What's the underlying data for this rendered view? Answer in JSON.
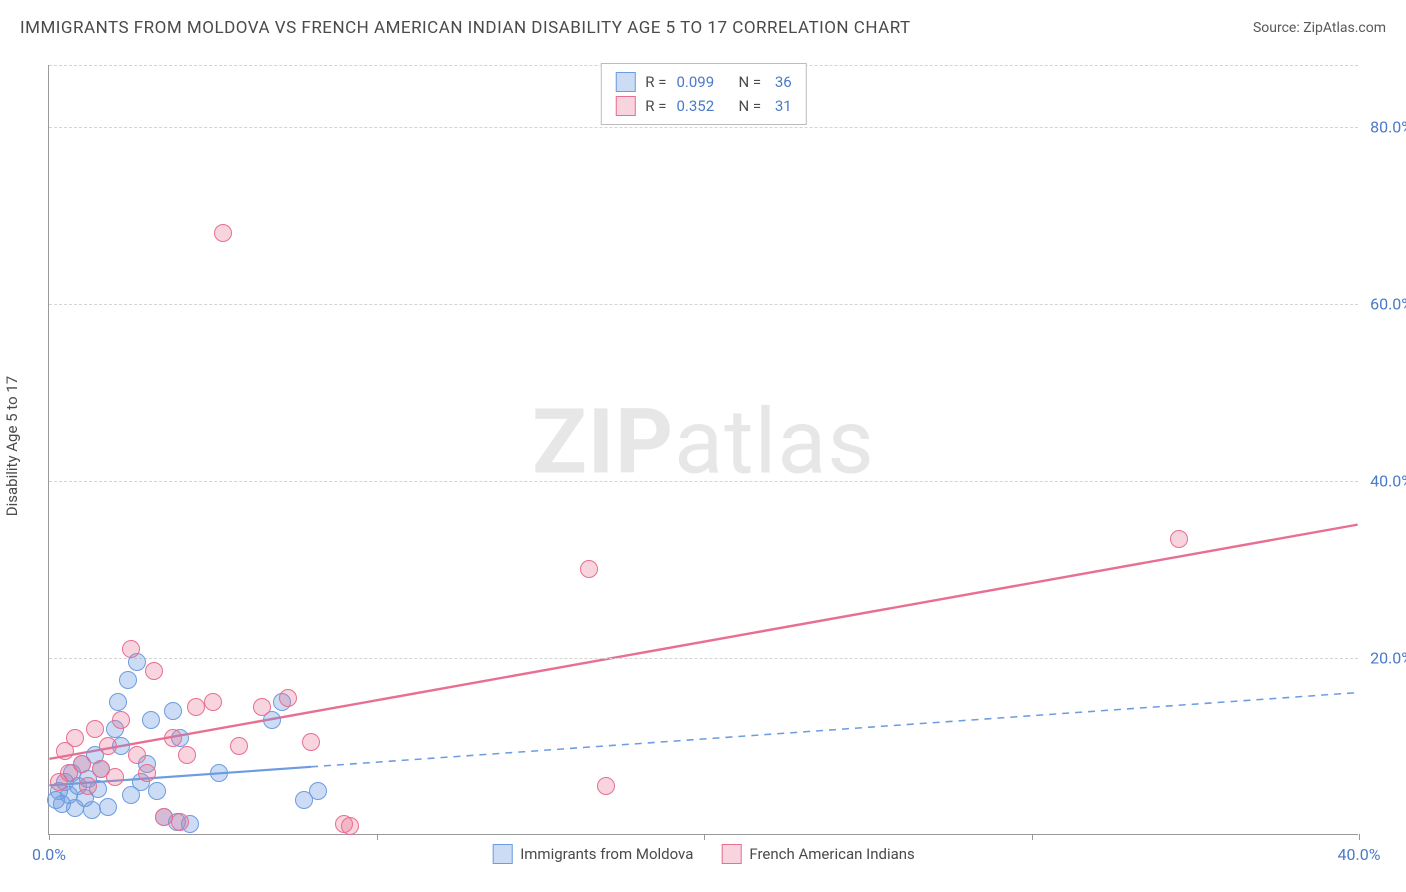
{
  "title": "IMMIGRANTS FROM MOLDOVA VS FRENCH AMERICAN INDIAN DISABILITY AGE 5 TO 17 CORRELATION CHART",
  "source_prefix": "Source: ",
  "source_name": "ZipAtlas.com",
  "y_axis_title": "Disability Age 5 to 17",
  "watermark_bold": "ZIP",
  "watermark_rest": "atlas",
  "chart": {
    "type": "scatter",
    "xlim": [
      0,
      40
    ],
    "ylim": [
      0,
      87
    ],
    "x_ticks": [
      0,
      10,
      20,
      30,
      40
    ],
    "x_tick_labels": [
      "0.0%",
      "",
      "",
      "",
      "40.0%"
    ],
    "y_ticks": [
      20,
      40,
      60,
      80
    ],
    "y_tick_labels": [
      "20.0%",
      "40.0%",
      "60.0%",
      "80.0%"
    ],
    "background_color": "#ffffff",
    "grid_color": "#d4d4d4",
    "axis_color": "#999999",
    "tick_label_color": "#4a7ac8",
    "tick_fontsize": 16,
    "title_fontsize": 17,
    "title_color": "#4a4a4a",
    "marker_radius": 9,
    "marker_opacity": 0.55
  },
  "series": [
    {
      "name": "Immigrants from Moldova",
      "color": "#6d9ce0",
      "fill": "rgba(109,156,224,0.35)",
      "stroke": "#6d9ce0",
      "R": "0.099",
      "N": "36",
      "trend": {
        "x1": 0,
        "y1": 5.5,
        "x2": 8,
        "y2": 7.5,
        "solid_until_x": 8,
        "dash_to_x": 40,
        "dash_to_y": 16.0,
        "stroke_width": 2.2
      },
      "points": [
        [
          0.2,
          4.0
        ],
        [
          0.3,
          5.0
        ],
        [
          0.4,
          3.5
        ],
        [
          0.5,
          6.0
        ],
        [
          0.6,
          4.5
        ],
        [
          0.7,
          7.0
        ],
        [
          0.8,
          3.0
        ],
        [
          0.9,
          5.5
        ],
        [
          1.0,
          8.0
        ],
        [
          1.1,
          4.2
        ],
        [
          1.2,
          6.3
        ],
        [
          1.3,
          2.8
        ],
        [
          1.4,
          9.0
        ],
        [
          1.5,
          5.2
        ],
        [
          1.6,
          7.5
        ],
        [
          1.8,
          3.2
        ],
        [
          2.0,
          12.0
        ],
        [
          2.1,
          15.0
        ],
        [
          2.2,
          10.0
        ],
        [
          2.4,
          17.5
        ],
        [
          2.5,
          4.5
        ],
        [
          2.7,
          19.5
        ],
        [
          2.8,
          6.0
        ],
        [
          3.0,
          8.0
        ],
        [
          3.1,
          13.0
        ],
        [
          3.3,
          5.0
        ],
        [
          3.5,
          2.0
        ],
        [
          3.8,
          14.0
        ],
        [
          3.9,
          1.5
        ],
        [
          4.0,
          11.0
        ],
        [
          4.3,
          1.2
        ],
        [
          5.2,
          7.0
        ],
        [
          6.8,
          13.0
        ],
        [
          7.1,
          15.0
        ],
        [
          7.8,
          4.0
        ],
        [
          8.2,
          5.0
        ]
      ]
    },
    {
      "name": "French American Indians",
      "color": "#e86f91",
      "fill": "rgba(232,111,145,0.30)",
      "stroke": "#e86f91",
      "R": "0.352",
      "N": "31",
      "trend": {
        "x1": 0,
        "y1": 8.5,
        "x2": 40,
        "y2": 35.0,
        "solid_until_x": 40,
        "dash_to_x": 40,
        "dash_to_y": 35.0,
        "stroke_width": 2.4
      },
      "points": [
        [
          0.3,
          6.0
        ],
        [
          0.5,
          9.5
        ],
        [
          0.6,
          7.0
        ],
        [
          0.8,
          11.0
        ],
        [
          1.0,
          8.0
        ],
        [
          1.2,
          5.5
        ],
        [
          1.4,
          12.0
        ],
        [
          1.6,
          7.5
        ],
        [
          1.8,
          10.0
        ],
        [
          2.0,
          6.5
        ],
        [
          2.2,
          13.0
        ],
        [
          2.5,
          21.0
        ],
        [
          2.7,
          9.0
        ],
        [
          3.0,
          7.0
        ],
        [
          3.2,
          18.5
        ],
        [
          3.5,
          2.0
        ],
        [
          3.8,
          11.0
        ],
        [
          4.0,
          1.5
        ],
        [
          4.2,
          9.0
        ],
        [
          4.5,
          14.5
        ],
        [
          5.0,
          15.0
        ],
        [
          5.3,
          68.0
        ],
        [
          5.8,
          10.0
        ],
        [
          6.5,
          14.5
        ],
        [
          7.3,
          15.5
        ],
        [
          8.0,
          10.5
        ],
        [
          9.0,
          1.2
        ],
        [
          9.2,
          1.0
        ],
        [
          16.5,
          30.0
        ],
        [
          17.0,
          5.5
        ],
        [
          34.5,
          33.5
        ]
      ]
    }
  ],
  "top_legend": {
    "r_label": "R =",
    "n_label": "N ="
  },
  "bottom_legend": {
    "items": [
      "Immigrants from Moldova",
      "French American Indians"
    ]
  }
}
